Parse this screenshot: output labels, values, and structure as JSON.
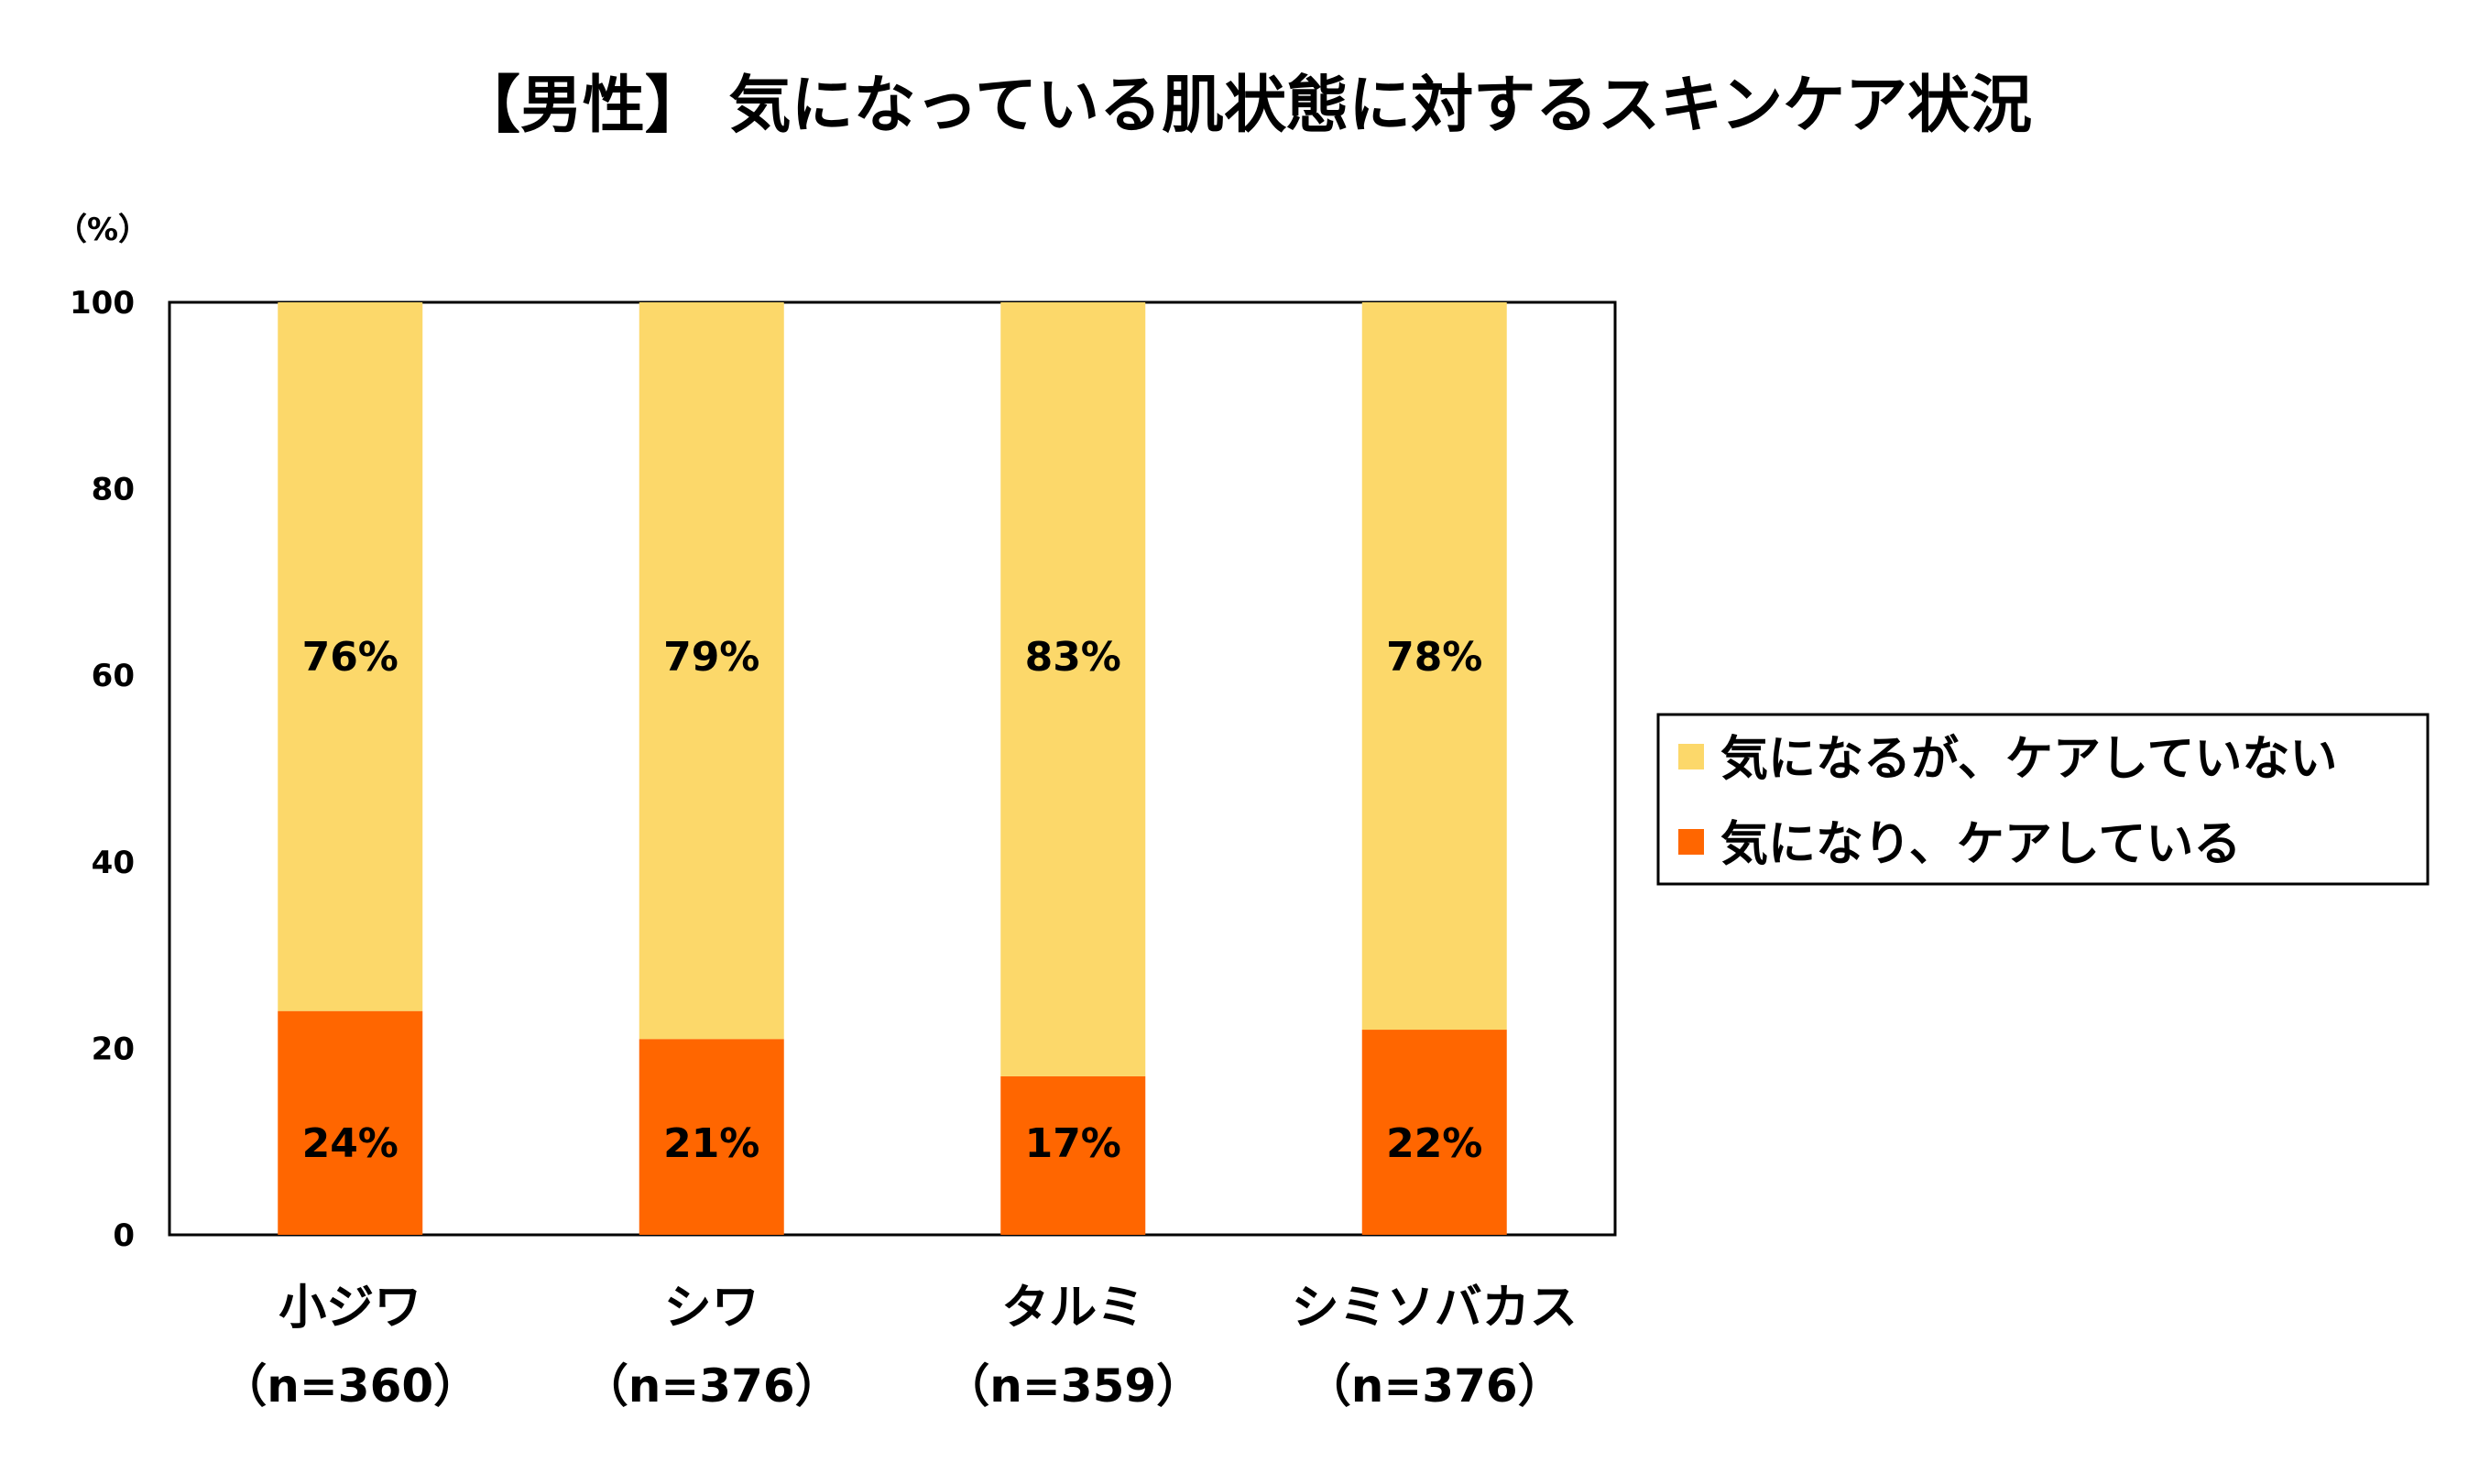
{
  "chart_data": {
    "type": "bar",
    "stacked": true,
    "title": "【男性】 気になっている肌状態に対するスキンケア状況",
    "ylabel": "（%）",
    "ylim": [
      0,
      100
    ],
    "yticks": [
      0,
      20,
      40,
      60,
      80,
      100
    ],
    "categories": [
      "小ジワ",
      "シワ",
      "タルミ",
      "シミソバカス"
    ],
    "sample_sizes": [
      "（n=360）",
      "（n=376）",
      "（n=359）",
      "（n=376）"
    ],
    "series": [
      {
        "name": "気になり、ケアしている",
        "color": "#ff6600",
        "values": [
          24,
          21,
          17,
          22
        ],
        "labels": [
          "24%",
          "21%",
          "17%",
          "22%"
        ]
      },
      {
        "name": "気になるが、ケアしていない",
        "color": "#fcd86a",
        "values": [
          76,
          79,
          83,
          78
        ],
        "labels": [
          "76%",
          "79%",
          "83%",
          "78%"
        ]
      }
    ],
    "legend_entries": [
      "気になるが、ケアしていない",
      "気になり、ケアしている"
    ],
    "legend_position": "right",
    "grid": false
  }
}
